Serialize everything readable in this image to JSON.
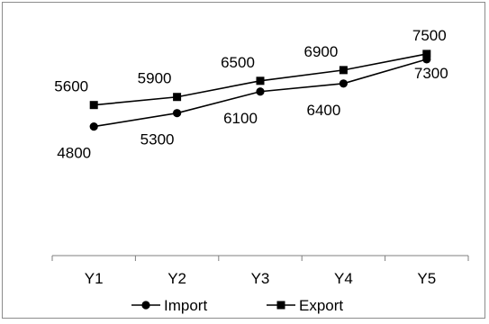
{
  "chart_data": {
    "type": "line",
    "categories": [
      "Y1",
      "Y2",
      "Y3",
      "Y4",
      "Y5"
    ],
    "series": [
      {
        "name": "Import",
        "values": [
          4800,
          5300,
          6100,
          6400,
          7300
        ],
        "labels": [
          "4800",
          "5300",
          "6100",
          "6400",
          "7300"
        ],
        "marker": "circle"
      },
      {
        "name": "Export",
        "values": [
          5600,
          5900,
          6500,
          6900,
          7500
        ],
        "labels": [
          "5600",
          "5900",
          "6500",
          "6900",
          "7500"
        ],
        "marker": "square"
      }
    ],
    "title": "",
    "xlabel": "",
    "ylabel": "",
    "ylim": [
      0,
      8000
    ],
    "grid": false,
    "legend": "bottom",
    "colors": {
      "line": "#000000",
      "marker": "#000000",
      "axis": "#7f7f7f",
      "border": "#8c8c8c"
    }
  }
}
